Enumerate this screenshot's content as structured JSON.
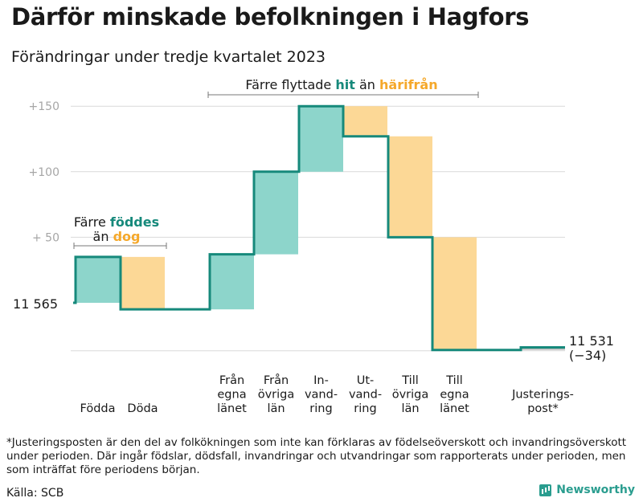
{
  "title": "Därför minskade befolkningen i Hagfors",
  "subtitle": "Förändringar under tredje kvartalet 2023",
  "footnote": "*Justeringsposten är den del av folkökningen som inte kan förklaras av födelseöverskott och invandringsöverskott under perioden. Där ingår födslar, dödsfall, invandringar och utvandringar som rapporterats under perioden, men som inträffat före periodens början.",
  "source": "Källa: SCB",
  "brand": "Newsworthy",
  "colors": {
    "increase": "#8dd5cb",
    "decrease": "#fcd896",
    "line": "#16897b",
    "hit": "#16897b",
    "harifran": "#f5a82a",
    "grid": "#d9d9d9",
    "adjustment": "#bfbfbf"
  },
  "chart_data": {
    "type": "waterfall",
    "start_value": 11565,
    "start_label": "11  565",
    "end_value": 11531,
    "end_label": "11 531",
    "end_change_label": "(−34)",
    "ylim": [
      -36,
      160
    ],
    "yticks": [
      {
        "value": 50,
        "label": "+  50"
      },
      {
        "value": 100,
        "label": "+100"
      },
      {
        "value": 150,
        "label": "+150"
      }
    ],
    "steps": [
      {
        "label": [
          "Födda"
        ],
        "value": 35,
        "start": 0,
        "end": 35,
        "kind": "increase"
      },
      {
        "label": [
          "Döda"
        ],
        "value": -40,
        "start": 35,
        "end": -5,
        "kind": "decrease"
      },
      {
        "label": [
          "Från",
          "egna",
          "länet"
        ],
        "value": 42,
        "start": -5,
        "end": 37,
        "kind": "increase"
      },
      {
        "label": [
          "Från",
          "övriga",
          "län"
        ],
        "value": 63,
        "start": 37,
        "end": 100,
        "kind": "increase"
      },
      {
        "label": [
          "In-",
          "vand-",
          "ring"
        ],
        "value": 50,
        "start": 100,
        "end": 150,
        "kind": "increase"
      },
      {
        "label": [
          "Ut-",
          "vand-",
          "ring"
        ],
        "value": -23,
        "start": 150,
        "end": 127,
        "kind": "decrease"
      },
      {
        "label": [
          "Till",
          "övriga",
          "län"
        ],
        "value": -77,
        "start": 127,
        "end": 50,
        "kind": "decrease"
      },
      {
        "label": [
          "Till",
          "egna",
          "länet"
        ],
        "value": -86,
        "start": 50,
        "end": -36,
        "kind": "decrease"
      },
      {
        "label": [
          "Justerings-",
          "post*"
        ],
        "value": 2,
        "start": -36,
        "end": -34,
        "kind": "adjustment"
      }
    ],
    "annotations": [
      {
        "text_parts": [
          {
            "text": "Färre ",
            "color": ""
          },
          {
            "text": "föddes",
            "color": "hit"
          }
        ],
        "text_parts2": [
          {
            "text": "än ",
            "color": ""
          },
          {
            "text": "dog",
            "color": "harifran"
          }
        ]
      },
      {
        "text_parts": [
          {
            "text": "Färre flyttade ",
            "color": ""
          },
          {
            "text": "hit",
            "color": "hit"
          },
          {
            "text": " än ",
            "color": ""
          },
          {
            "text": "härifrån",
            "color": "harifran"
          }
        ]
      }
    ]
  }
}
